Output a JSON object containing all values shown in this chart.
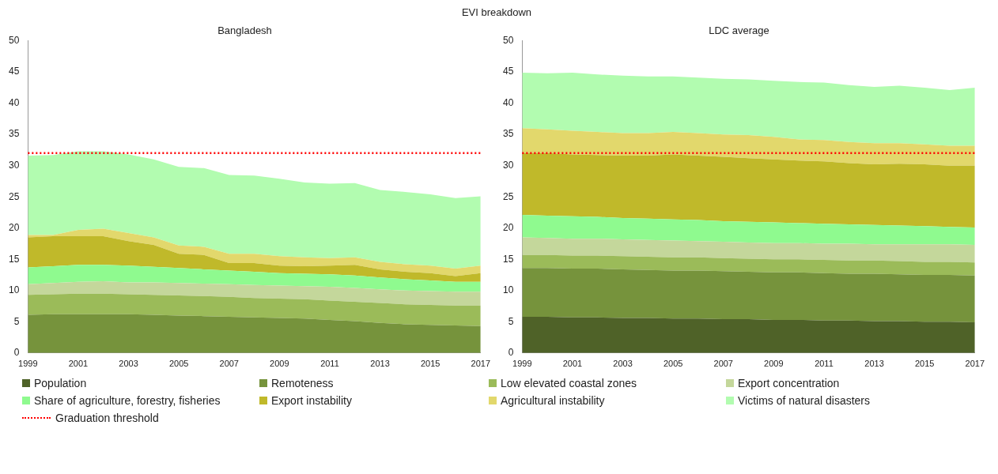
{
  "chart_data": [
    {
      "type": "area",
      "title": "Bangladesh",
      "annotations": [
        "EVI breakdown"
      ],
      "stacked": true,
      "categories": [
        "1999",
        null,
        "2001",
        null,
        "2003",
        null,
        "2005",
        null,
        "2007",
        null,
        "2009",
        null,
        "2011",
        null,
        "2013",
        null,
        "2015",
        null,
        "2017"
      ],
      "ylim": [
        0,
        50
      ],
      "yticks": [
        0,
        5,
        10,
        15,
        20,
        25,
        30,
        35,
        40,
        45,
        50
      ],
      "series": [
        {
          "color": "#76933c",
          "values": [
            6.1,
            6.2,
            6.2,
            6.2,
            6.2,
            6.1,
            6.0,
            5.9,
            5.8,
            5.7,
            5.6,
            5.5,
            5.3,
            5.1,
            4.8,
            4.6,
            4.5,
            4.4,
            4.3
          ]
        },
        {
          "color": "#9bbb59",
          "values": [
            3.2,
            3.2,
            3.3,
            3.3,
            3.2,
            3.2,
            3.2,
            3.2,
            3.2,
            3.1,
            3.1,
            3.1,
            3.1,
            3.1,
            3.2,
            3.2,
            3.2,
            3.2,
            3.3
          ]
        },
        {
          "color": "#c4d79b",
          "values": [
            1.7,
            1.8,
            1.9,
            2.0,
            1.9,
            2.0,
            2.0,
            2.0,
            2.0,
            2.1,
            2.1,
            2.1,
            2.2,
            2.2,
            2.2,
            2.2,
            2.2,
            2.2,
            2.2
          ]
        },
        {
          "color": "#8ffa8f",
          "values": [
            2.7,
            2.7,
            2.7,
            2.6,
            2.7,
            2.5,
            2.4,
            2.3,
            2.2,
            2.1,
            2.0,
            2.0,
            2.0,
            2.0,
            1.9,
            1.8,
            1.7,
            1.6,
            1.6
          ]
        },
        {
          "color": "#c0b92a",
          "values": [
            4.8,
            4.8,
            4.6,
            4.6,
            3.9,
            3.5,
            2.3,
            2.3,
            1.2,
            1.4,
            1.2,
            1.2,
            1.4,
            1.7,
            1.3,
            1.2,
            1.2,
            0.9,
            1.4
          ]
        },
        {
          "color": "#e2d86c",
          "values": [
            0.4,
            0.2,
            1.0,
            1.2,
            1.3,
            1.2,
            1.3,
            1.3,
            1.5,
            1.5,
            1.5,
            1.4,
            1.2,
            1.2,
            1.2,
            1.2,
            1.2,
            1.2,
            1.2
          ]
        },
        {
          "color": "#b2fcb0",
          "values": [
            12.7,
            12.8,
            12.6,
            12.4,
            12.6,
            12.5,
            12.6,
            12.6,
            12.6,
            12.5,
            12.4,
            12.0,
            11.9,
            11.9,
            11.5,
            11.6,
            11.4,
            11.3,
            11.1
          ]
        }
      ],
      "ref_lines": [
        {
          "axis": "y",
          "value": 32,
          "color": "#ff0000",
          "line_style": "dotted"
        }
      ]
    },
    {
      "type": "area",
      "title": "LDC average",
      "stacked": true,
      "legend": "bottom",
      "categories": [
        "1999",
        null,
        "2001",
        null,
        "2003",
        null,
        "2005",
        null,
        "2007",
        null,
        "2009",
        null,
        "2011",
        null,
        "2013",
        null,
        "2015",
        null,
        "2017"
      ],
      "ylim": [
        0,
        50
      ],
      "yticks": [
        0,
        5,
        10,
        15,
        20,
        25,
        30,
        35,
        40,
        45,
        50
      ],
      "series": [
        {
          "name": "Population",
          "color": "#4f6228",
          "values": [
            5.8,
            5.8,
            5.7,
            5.7,
            5.6,
            5.6,
            5.5,
            5.5,
            5.4,
            5.4,
            5.3,
            5.3,
            5.2,
            5.2,
            5.1,
            5.1,
            5.0,
            5.0,
            4.9
          ]
        },
        {
          "name": "Remoteness",
          "color": "#76933c",
          "values": [
            7.8,
            7.8,
            7.8,
            7.8,
            7.8,
            7.7,
            7.7,
            7.7,
            7.7,
            7.6,
            7.6,
            7.6,
            7.6,
            7.5,
            7.6,
            7.5,
            7.5,
            7.5,
            7.5
          ]
        },
        {
          "name": "Low elevated coastal zones",
          "color": "#9bbb59",
          "values": [
            2.1,
            2.1,
            2.1,
            2.1,
            2.1,
            2.1,
            2.1,
            2.1,
            2.1,
            2.1,
            2.1,
            2.1,
            2.1,
            2.1,
            2.1,
            2.1,
            2.1,
            2.1,
            2.1
          ]
        },
        {
          "name": "Export concentration",
          "color": "#c4d79b",
          "values": [
            2.8,
            2.7,
            2.7,
            2.7,
            2.7,
            2.7,
            2.7,
            2.6,
            2.6,
            2.6,
            2.6,
            2.6,
            2.6,
            2.7,
            2.6,
            2.7,
            2.8,
            2.8,
            2.8
          ]
        },
        {
          "name": "Share of agriculture, forestry, fisheries",
          "color": "#8ffa8f",
          "values": [
            3.6,
            3.6,
            3.6,
            3.5,
            3.4,
            3.4,
            3.4,
            3.4,
            3.3,
            3.3,
            3.3,
            3.2,
            3.2,
            3.1,
            3.1,
            3.0,
            2.9,
            2.8,
            2.8
          ]
        },
        {
          "name": "Export instability",
          "color": "#c0b92a",
          "values": [
            9.9,
            10.0,
            9.9,
            9.9,
            10.0,
            10.1,
            10.4,
            10.3,
            10.3,
            10.2,
            10.1,
            10.0,
            10.0,
            9.8,
            9.7,
            9.9,
            9.9,
            9.8,
            9.9
          ]
        },
        {
          "name": "Agricultural instability",
          "color": "#e2d86c",
          "values": [
            4.0,
            3.8,
            3.8,
            3.7,
            3.6,
            3.6,
            3.6,
            3.6,
            3.6,
            3.7,
            3.6,
            3.4,
            3.4,
            3.4,
            3.4,
            3.3,
            3.2,
            3.2,
            3.2
          ]
        },
        {
          "name": "Victims of natural disasters",
          "color": "#b2fcb0",
          "values": [
            8.9,
            9.0,
            9.3,
            9.2,
            9.2,
            9.1,
            8.9,
            8.9,
            8.9,
            8.9,
            9.0,
            9.2,
            9.2,
            9.1,
            9.0,
            9.2,
            9.1,
            8.9,
            9.3
          ]
        }
      ],
      "ref_lines": [
        {
          "axis": "y",
          "value": 32,
          "label": "Graduation threshold",
          "color": "#ff0000",
          "line_style": "dotted"
        }
      ]
    }
  ]
}
